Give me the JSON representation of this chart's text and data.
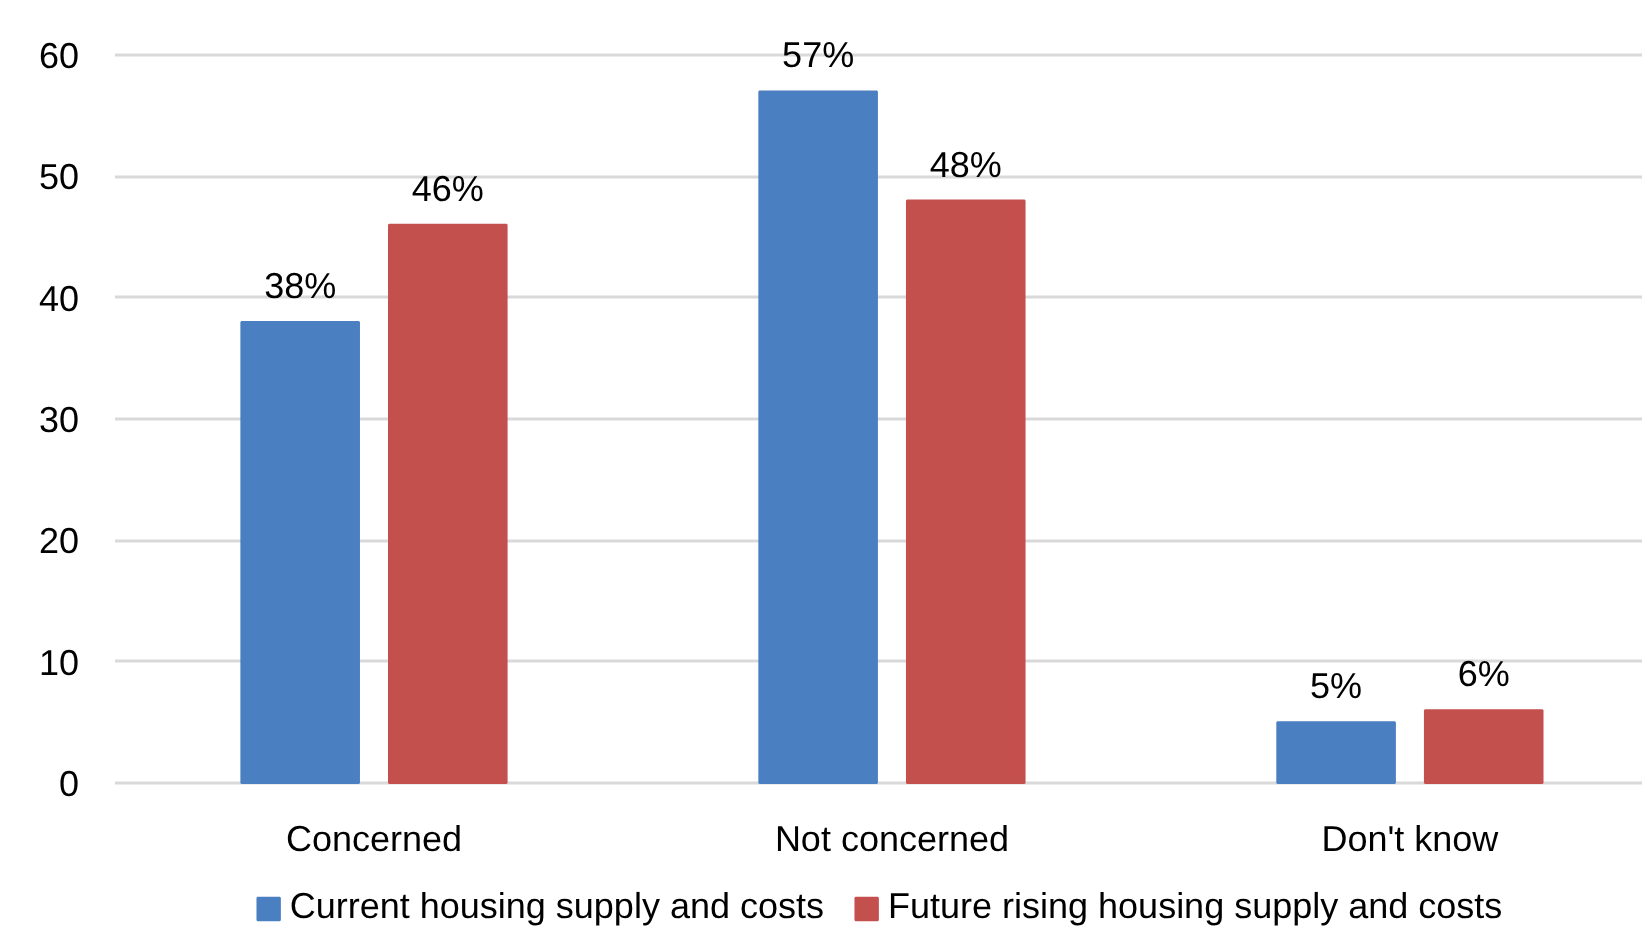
{
  "chart_data": {
    "type": "bar",
    "categories": [
      "Concerned",
      "Not concerned",
      "Don't know"
    ],
    "series": [
      {
        "name": "Current housing supply and costs",
        "color": "#4a7fc1",
        "values": [
          38,
          57,
          5
        ],
        "value_labels": [
          "38%",
          "57%",
          "5%"
        ]
      },
      {
        "name": "Future rising housing supply and costs",
        "color": "#c4504e",
        "values": [
          46,
          48,
          6
        ],
        "value_labels": [
          "46%",
          "48%",
          "6%"
        ]
      }
    ],
    "ylim": [
      0,
      60
    ],
    "yticks": [
      0,
      10,
      20,
      30,
      40,
      50,
      60
    ],
    "grid": "y",
    "legend": "bottom"
  }
}
